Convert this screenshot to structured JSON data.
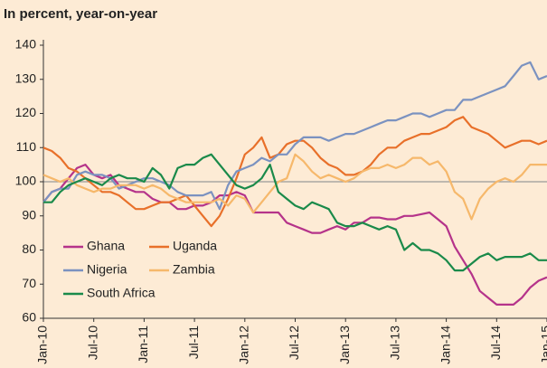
{
  "chart_data": {
    "type": "line",
    "title": "In percent, year-on-year",
    "categories": [
      "Jan-10",
      null,
      null,
      null,
      null,
      null,
      "Jul-10",
      null,
      null,
      null,
      null,
      null,
      "Jan-11",
      null,
      null,
      null,
      null,
      null,
      "Jul-11",
      null,
      null,
      null,
      null,
      null,
      "Jan-12",
      null,
      null,
      null,
      null,
      null,
      "Jul-12",
      null,
      null,
      null,
      null,
      null,
      "Jan-13",
      null,
      null,
      null,
      null,
      null,
      "Jul-13",
      null,
      null,
      null,
      null,
      null,
      "Jan-14",
      null,
      null,
      null,
      null,
      null,
      "Jul-14",
      null,
      null,
      null,
      null,
      null,
      "Jan-15"
    ],
    "series": [
      {
        "name": "Ghana",
        "color": "#b5338a",
        "values": [
          94,
          97,
          98,
          101,
          104,
          105,
          102,
          101,
          102,
          99,
          98,
          97,
          97,
          95,
          94,
          94,
          92,
          92,
          93,
          93,
          94,
          96,
          96,
          97,
          96,
          91,
          91,
          91,
          91,
          88,
          87,
          86,
          85,
          85,
          86,
          87,
          86,
          88,
          88,
          89.5,
          89.5,
          89,
          89,
          90,
          90,
          90.5,
          91,
          89,
          87,
          81,
          77,
          73,
          68,
          66,
          64,
          64,
          64,
          66,
          69,
          71,
          72
        ]
      },
      {
        "name": "Uganda",
        "color": "#e8702a",
        "values": [
          110,
          109,
          107,
          104,
          103,
          101,
          99,
          97,
          97,
          96,
          94,
          92,
          92,
          93,
          94,
          94,
          95,
          96,
          93,
          90,
          87,
          90,
          95,
          101,
          108,
          110,
          113,
          107,
          108,
          111,
          112,
          112,
          110,
          107,
          105,
          104,
          102,
          102,
          103,
          105,
          108,
          110,
          110,
          112,
          113,
          114,
          114,
          115,
          116,
          118,
          119,
          116,
          115,
          114,
          112,
          110,
          111,
          112,
          112,
          111,
          112
        ]
      },
      {
        "name": "Nigeria",
        "color": "#7b92c0",
        "values": [
          94,
          97,
          98,
          98,
          102,
          103,
          102,
          102,
          101,
          98,
          99,
          100,
          101,
          101,
          100,
          99,
          97,
          96,
          96,
          96,
          97,
          92,
          99,
          103,
          104,
          105,
          107,
          106,
          108,
          108,
          111,
          113,
          113,
          113,
          112,
          113,
          114,
          114,
          115,
          116,
          117,
          118,
          118,
          119,
          120,
          120,
          119,
          120,
          121,
          121,
          124,
          124,
          125,
          126,
          127,
          128,
          131,
          134,
          135,
          130,
          131
        ]
      },
      {
        "name": "Zambia",
        "color": "#f6b86b",
        "values": [
          102,
          101,
          100,
          101,
          99,
          98,
          97,
          98,
          98,
          99,
          99,
          99,
          98,
          99,
          98,
          96,
          95,
          94,
          94,
          94,
          94,
          95,
          93,
          96,
          95,
          91,
          94,
          97,
          100,
          101,
          108,
          106,
          103,
          101,
          102,
          101,
          100,
          101,
          103,
          104,
          104,
          105,
          104,
          105,
          107,
          107,
          105,
          106,
          103,
          97,
          95,
          89,
          95,
          98,
          100,
          101,
          100,
          102,
          105,
          105,
          105
        ]
      },
      {
        "name": "South Africa",
        "color": "#1a8a4a",
        "values": [
          94,
          94,
          97,
          99,
          100,
          101,
          100,
          99,
          101,
          102,
          101,
          101,
          100,
          104,
          102,
          98,
          104,
          105,
          105,
          107,
          108,
          105,
          102,
          99,
          98,
          99,
          101,
          105,
          97,
          95,
          93,
          92,
          94,
          93,
          92,
          88,
          87,
          87,
          88,
          87,
          86,
          87,
          86,
          80,
          82,
          80,
          80,
          79,
          77,
          74,
          74,
          76,
          78,
          79,
          77,
          78,
          78,
          78,
          79,
          77,
          77
        ]
      }
    ],
    "ylim": [
      60,
      140
    ],
    "yticks": [
      60,
      70,
      80,
      90,
      100,
      110,
      120,
      130,
      140
    ],
    "hline": 100
  }
}
